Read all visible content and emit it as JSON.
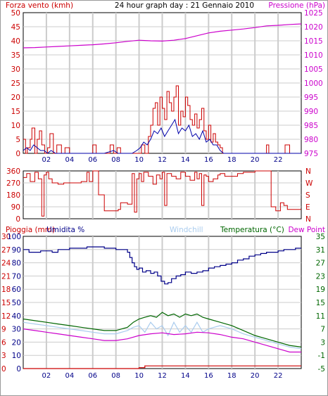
{
  "header": {
    "left_label": "Forza vento (kmh)",
    "title": "24 hour graph day : 21 Gennaio 2010",
    "right_label": "Pressione (hPa)"
  },
  "colors": {
    "wind": "#cc0000",
    "gust": "#0000aa",
    "pressure": "#cc00cc",
    "direction": "#cc0000",
    "humidity": "#000088",
    "temperature": "#006600",
    "dewpoint": "#cc00cc",
    "windchill": "#aaccee",
    "rain": "#cc0000",
    "grid": "#cccccc",
    "axis_left": "#cc0000",
    "axis_right": "#cc00cc",
    "axis_bottom": "#000088"
  },
  "chart_data": [
    {
      "type": "line",
      "panel": "wind_pressure",
      "x_ticks": [
        "02",
        "04",
        "06",
        "08",
        "10",
        "12",
        "14",
        "16",
        "18",
        "20",
        "22"
      ],
      "xlim": [
        0,
        24
      ],
      "y_left": {
        "label": "Forza vento (kmh)",
        "ticks": [
          0,
          5,
          10,
          15,
          20,
          25,
          30,
          35,
          40,
          45,
          50
        ],
        "lim": [
          0,
          50
        ]
      },
      "y_right": {
        "label": "Pressione (hPa)",
        "ticks": [
          975,
          980,
          985,
          990,
          995,
          1000,
          1005,
          1010,
          1015,
          1020,
          1025
        ],
        "lim": [
          975,
          1025
        ]
      },
      "series": [
        {
          "key": "wind",
          "axis": "left",
          "step": true,
          "x": [
            0,
            0.2,
            0.35,
            0.6,
            0.75,
            1.0,
            1.2,
            1.4,
            1.6,
            1.85,
            2.1,
            2.3,
            2.6,
            2.9,
            3.3,
            3.6,
            4.0,
            4.4,
            4.8,
            5.2,
            5.5,
            5.8,
            6.0,
            6.3,
            6.6,
            6.9,
            7.2,
            7.5,
            7.8,
            8.1,
            8.4,
            8.7,
            9.0,
            9.3,
            9.6,
            9.9,
            10.2,
            10.5,
            10.8,
            11.0,
            11.2,
            11.4,
            11.6,
            11.8,
            12.0,
            12.2,
            12.4,
            12.6,
            12.8,
            13.0,
            13.2,
            13.4,
            13.6,
            13.8,
            14.0,
            14.2,
            14.4,
            14.6,
            14.8,
            15.0,
            15.2,
            15.4,
            15.6,
            15.8,
            16.0,
            16.2,
            16.4,
            16.6,
            16.8,
            17.0,
            17.2,
            17.4,
            17.7,
            18.0,
            18.5,
            19.0,
            19.5,
            20.0,
            20.5,
            21.0,
            21.2,
            21.5,
            22.0,
            22.4,
            22.6,
            23.0,
            24.0
          ],
          "y": [
            5,
            0,
            2,
            5,
            9,
            0,
            5,
            8,
            3,
            0,
            2,
            7,
            0,
            3,
            0,
            2,
            0,
            0,
            0,
            0,
            0,
            0,
            3,
            0,
            0,
            0,
            0,
            3,
            0,
            2,
            0,
            0,
            0,
            0,
            0,
            0,
            3,
            0,
            6,
            10,
            16,
            18,
            10,
            20,
            16,
            12,
            22,
            18,
            15,
            20,
            24,
            10,
            15,
            13,
            20,
            17,
            12,
            10,
            14,
            9,
            12,
            16,
            8,
            5,
            10,
            4,
            7,
            4,
            3,
            2,
            0,
            0,
            0,
            0,
            0,
            0,
            0,
            0,
            0,
            3,
            0,
            0,
            0,
            0,
            3,
            0,
            0
          ]
        },
        {
          "key": "gust",
          "axis": "left",
          "step": false,
          "x": [
            0,
            0.3,
            0.6,
            0.9,
            1.2,
            1.5,
            1.8,
            2.1,
            2.4,
            2.8,
            3.2,
            4.0,
            5.0,
            6.0,
            7.0,
            7.8,
            8.2,
            8.6,
            9.0,
            9.4,
            9.8,
            10.1,
            10.4,
            10.7,
            11.0,
            11.3,
            11.6,
            11.9,
            12.2,
            12.5,
            12.8,
            13.1,
            13.4,
            13.7,
            14.0,
            14.3,
            14.6,
            14.9,
            15.2,
            15.5,
            15.8,
            16.1,
            16.4,
            16.7,
            17.0,
            17.3,
            18.0,
            24.0
          ],
          "y": [
            1,
            2,
            1,
            3,
            2,
            1,
            1,
            0,
            1,
            0,
            0,
            0,
            0,
            0,
            0,
            1,
            0,
            0,
            0,
            0,
            1,
            2,
            4,
            3,
            5,
            8,
            7,
            9,
            6,
            8,
            10,
            12,
            7,
            9,
            8,
            10,
            6,
            7,
            5,
            8,
            4,
            5,
            3,
            3,
            1,
            0,
            0,
            0
          ]
        },
        {
          "key": "pressure",
          "axis": "right",
          "step": false,
          "x": [
            0,
            1,
            2,
            3,
            4,
            5,
            6,
            7,
            8,
            9,
            10,
            11,
            12,
            13,
            14,
            15,
            16,
            17,
            18,
            19,
            20,
            21,
            22,
            23,
            24
          ],
          "y": [
            1012.5,
            1012.6,
            1012.8,
            1013.0,
            1013.2,
            1013.4,
            1013.6,
            1013.9,
            1014.3,
            1014.8,
            1015.2,
            1015.0,
            1014.9,
            1015.2,
            1015.8,
            1016.8,
            1017.8,
            1018.4,
            1018.8,
            1019.2,
            1019.7,
            1020.3,
            1020.5,
            1020.8,
            1021.0
          ]
        }
      ]
    },
    {
      "type": "line",
      "panel": "direction",
      "xlim": [
        0,
        24
      ],
      "y_left": {
        "ticks": [
          0,
          90,
          180,
          270,
          360
        ],
        "lim": [
          0,
          360
        ]
      },
      "y_right": {
        "labels": [
          "N",
          "W",
          "S",
          "E",
          "N"
        ]
      },
      "series": [
        {
          "key": "direction",
          "step": true,
          "x": [
            0,
            0.3,
            0.6,
            1.0,
            1.3,
            1.6,
            1.8,
            2.0,
            2.2,
            2.5,
            3.0,
            3.5,
            4.0,
            4.5,
            5.0,
            5.5,
            5.7,
            6.0,
            6.5,
            7.0,
            7.5,
            7.8,
            8.0,
            8.2,
            8.4,
            9.0,
            9.4,
            9.6,
            9.8,
            10.0,
            10.2,
            10.4,
            10.8,
            11.2,
            11.5,
            11.8,
            12.0,
            12.2,
            12.4,
            12.8,
            13.2,
            13.6,
            14.0,
            14.4,
            14.8,
            15.0,
            15.2,
            15.4,
            15.6,
            15.8,
            16.0,
            16.4,
            16.8,
            17.0,
            17.4,
            18.0,
            18.5,
            19.0,
            19.5,
            20.0,
            20.5,
            21.0,
            21.4,
            21.8,
            22.2,
            22.5,
            22.8,
            23.2,
            24.0
          ],
          "y": [
            310,
            340,
            280,
            350,
            300,
            20,
            330,
            350,
            300,
            270,
            260,
            270,
            270,
            270,
            280,
            350,
            280,
            360,
            180,
            60,
            60,
            60,
            60,
            70,
            120,
            110,
            340,
            50,
            300,
            340,
            280,
            350,
            320,
            260,
            330,
            300,
            350,
            100,
            340,
            320,
            300,
            350,
            320,
            290,
            350,
            300,
            340,
            100,
            330,
            320,
            280,
            300,
            330,
            340,
            320,
            320,
            340,
            350,
            350,
            360,
            360,
            360,
            90,
            60,
            120,
            100,
            70,
            70,
            70
          ]
        }
      ]
    },
    {
      "type": "line",
      "panel": "hum_temp_rain",
      "x_ticks": [
        "02",
        "04",
        "06",
        "08",
        "10",
        "12",
        "14",
        "16",
        "18",
        "20",
        "22"
      ],
      "xlim": [
        0,
        24
      ],
      "y_left_rain": {
        "label": "Pioggia (mm)",
        "ticks": [
          0,
          3,
          6,
          9,
          12,
          15,
          18,
          21,
          24,
          27,
          30
        ]
      },
      "y_left_hum": {
        "label": "Umidita %",
        "ticks": [
          0,
          10,
          20,
          30,
          40,
          50,
          60,
          70,
          80,
          90,
          100
        ],
        "lim": [
          0,
          100
        ]
      },
      "y_right": {
        "label": "Dew Point",
        "ticks": [
          -5,
          -1,
          3,
          7,
          11,
          15,
          19,
          23,
          27,
          31,
          35
        ],
        "lim": [
          -5,
          35
        ]
      },
      "labels": {
        "windchill": "Windchill",
        "temperature": "Temperatura (°C)",
        "dewpoint": "Dew Point"
      },
      "series": [
        {
          "key": "humidity",
          "axis": "hum",
          "step": true,
          "x": [
            0,
            0.5,
            1.0,
            1.5,
            2.0,
            2.5,
            3.0,
            3.5,
            4.0,
            4.5,
            5.0,
            5.5,
            6.0,
            6.5,
            7.0,
            7.5,
            8.0,
            8.5,
            9.0,
            9.2,
            9.4,
            9.6,
            9.8,
            10.0,
            10.3,
            10.6,
            11.0,
            11.3,
            11.6,
            11.9,
            12.2,
            12.5,
            12.8,
            13.2,
            13.6,
            14.0,
            14.5,
            15.0,
            15.5,
            16.0,
            16.5,
            17.0,
            17.5,
            18.0,
            18.5,
            19.0,
            19.5,
            20.0,
            20.5,
            21.0,
            21.5,
            22.0,
            22.5,
            23.0,
            23.5,
            24.0
          ],
          "y": [
            90,
            88,
            88,
            89,
            89,
            88,
            90,
            90,
            91,
            91,
            91,
            92,
            92,
            92,
            91,
            91,
            90,
            90,
            88,
            84,
            80,
            77,
            75,
            76,
            73,
            74,
            72,
            73,
            70,
            66,
            64,
            65,
            68,
            70,
            71,
            73,
            72,
            73,
            74,
            76,
            77,
            78,
            79,
            80,
            82,
            83,
            85,
            86,
            87,
            88,
            88,
            89,
            90,
            90,
            91,
            91
          ]
        },
        {
          "key": "temperature",
          "axis": "right",
          "step": false,
          "x": [
            0,
            1,
            2,
            3,
            4,
            5,
            6,
            7,
            8,
            9,
            9.5,
            10,
            10.5,
            11,
            11.5,
            12,
            12.5,
            13,
            13.5,
            14,
            14.5,
            15,
            15.5,
            16,
            17,
            18,
            19,
            20,
            21,
            22,
            23,
            24
          ],
          "y": [
            10,
            9.5,
            9,
            8.5,
            8,
            7.5,
            7,
            6.5,
            6.5,
            7.5,
            9,
            10,
            10.5,
            11,
            10.5,
            12,
            11,
            11.5,
            10.5,
            11.5,
            11,
            11.5,
            10.5,
            10,
            9,
            8,
            6.5,
            5,
            4,
            3,
            2,
            1.5
          ]
        },
        {
          "key": "windchill",
          "axis": "right",
          "step": false,
          "x": [
            0,
            1,
            2,
            3,
            4,
            5,
            6,
            7,
            8,
            9,
            9.5,
            10,
            10.5,
            11,
            11.5,
            12,
            12.5,
            13,
            13.5,
            14,
            14.5,
            15,
            15.5,
            16,
            17,
            18,
            19,
            20,
            21,
            22,
            23,
            24
          ],
          "y": [
            9,
            8.5,
            8,
            7.5,
            7,
            6.5,
            6,
            5.5,
            5.5,
            6.5,
            7.5,
            8,
            6,
            9,
            7,
            8,
            5,
            9,
            6,
            8,
            6,
            9,
            6,
            7,
            8,
            7,
            5.5,
            4.5,
            3.5,
            2.5,
            1.5,
            1
          ]
        },
        {
          "key": "dewpoint",
          "axis": "right",
          "step": false,
          "x": [
            0,
            1,
            2,
            3,
            4,
            5,
            6,
            7,
            8,
            9,
            10,
            11,
            12,
            13,
            14,
            15,
            16,
            17,
            18,
            19,
            20,
            21,
            22,
            23,
            24
          ],
          "y": [
            7,
            6.5,
            6,
            5.5,
            5,
            4.5,
            4,
            3.5,
            3.5,
            4,
            5,
            5.5,
            5.8,
            5.3,
            5.5,
            6,
            5.8,
            5.3,
            4.5,
            4,
            3,
            2,
            1,
            0,
            0
          ]
        },
        {
          "key": "rain",
          "axis": "rain",
          "step": true,
          "x": [
            0,
            1,
            2,
            3,
            4,
            5,
            6,
            7,
            8,
            9,
            10,
            10.5,
            11,
            12,
            13,
            14,
            15,
            16,
            17,
            18,
            19,
            20,
            21,
            22,
            23,
            24
          ],
          "y": [
            0,
            0,
            0,
            0,
            0,
            0,
            0,
            0,
            0,
            0,
            0.2,
            0.6,
            0.6,
            0.6,
            0.6,
            0.6,
            0.6,
            0.6,
            0.6,
            0.6,
            0.6,
            0.6,
            0.6,
            0.6,
            0.6,
            0.6
          ]
        }
      ]
    }
  ]
}
